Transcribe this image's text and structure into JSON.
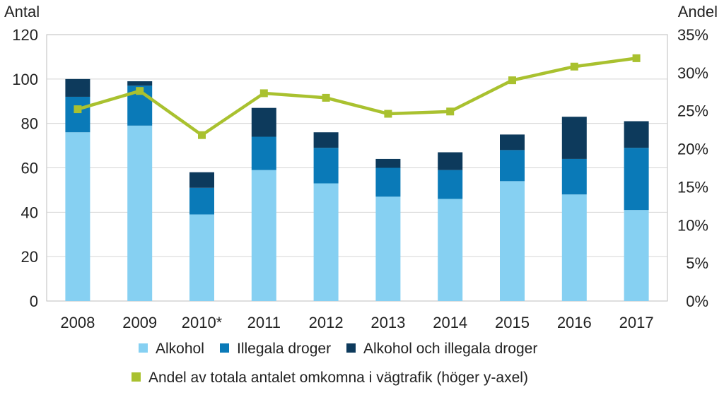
{
  "chart_data": {
    "type": "bar",
    "stacked": true,
    "categories": [
      "2008",
      "2009",
      "2010*",
      "2011",
      "2012",
      "2013",
      "2014",
      "2015",
      "2016",
      "2017"
    ],
    "series": [
      {
        "name": "Alkohol",
        "axis": "left",
        "color": "#86d0f2",
        "values": [
          76,
          79,
          39,
          59,
          53,
          47,
          46,
          54,
          48,
          41
        ]
      },
      {
        "name": "Illegala droger",
        "axis": "left",
        "color": "#0a7ab8",
        "values": [
          16,
          18,
          12,
          15,
          16,
          13,
          13,
          14,
          16,
          28
        ]
      },
      {
        "name": "Alkohol och illegala droger",
        "axis": "left",
        "color": "#0d3a5c",
        "values": [
          8,
          2,
          7,
          13,
          7,
          4,
          8,
          7,
          19,
          12
        ]
      },
      {
        "name": "Andel av totala antalet omkomna i vägtrafik (höger y-axel)",
        "type": "line",
        "axis": "right",
        "color": "#a9c12f",
        "values": [
          25.2,
          27.6,
          21.8,
          27.3,
          26.7,
          24.6,
          24.9,
          29.0,
          30.8,
          31.9
        ]
      }
    ],
    "ylabel": "Antal",
    "y2label": "Andel",
    "ylim": [
      0,
      120
    ],
    "y2lim": [
      0,
      35
    ],
    "yticks": [
      "0",
      "20",
      "40",
      "60",
      "80",
      "100",
      "120"
    ],
    "y2ticks": [
      "0%",
      "5%",
      "10%",
      "15%",
      "20%",
      "25%",
      "30%",
      "35%"
    ],
    "grid": true,
    "legend_position": "bottom"
  }
}
